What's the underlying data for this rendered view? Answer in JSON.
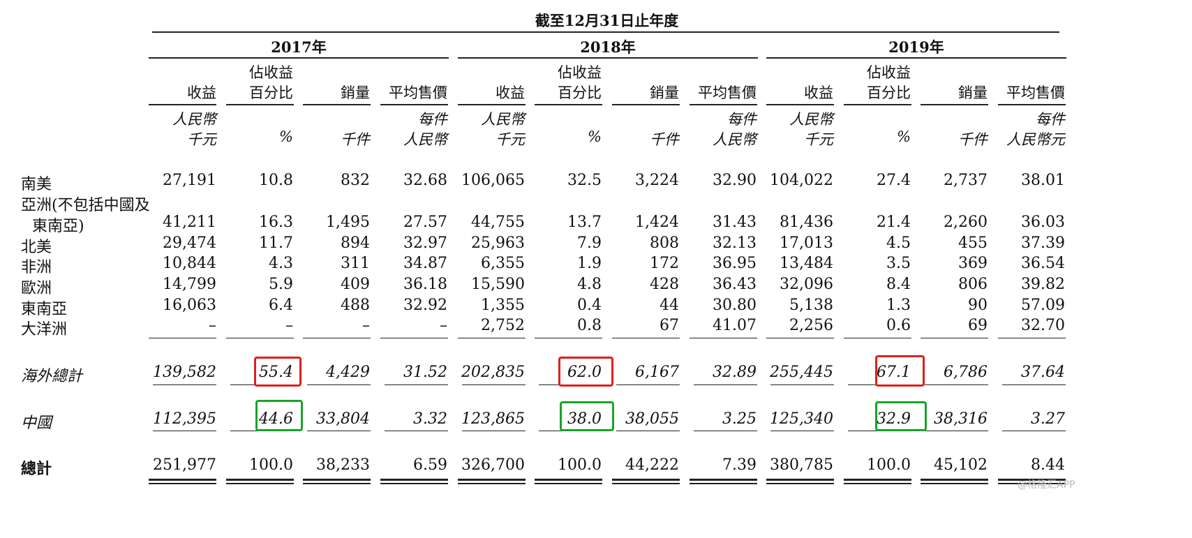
{
  "header": {
    "period": "截至12月31日止年度",
    "years": [
      "2017年",
      "2018年",
      "2019年"
    ],
    "col_revenue": "收益",
    "col_pct_line1": "佔收益",
    "col_pct_line2": "百分比",
    "col_volume": "銷量",
    "col_asp": "平均售價",
    "unit_rev_1": "人民幣",
    "unit_rev_2": "千元",
    "unit_pct": "%",
    "unit_vol": "千件",
    "unit_asp_1": "每件",
    "unit_asp_2": "人民幣",
    "unit_asp_2_last": "人民幣元"
  },
  "rows": [
    {
      "label": "南美",
      "values": [
        "27,191",
        "10.8",
        "832",
        "32.68",
        "106,065",
        "32.5",
        "3,224",
        "32.90",
        "104,022",
        "27.4",
        "2,737",
        "38.01"
      ]
    },
    {
      "label": "亞洲(不包括中國及",
      "label2": "東南亞)",
      "values": [
        "41,211",
        "16.3",
        "1,495",
        "27.57",
        "44,755",
        "13.7",
        "1,424",
        "31.43",
        "81,436",
        "21.4",
        "2,260",
        "36.03"
      ]
    },
    {
      "label": "北美",
      "values": [
        "29,474",
        "11.7",
        "894",
        "32.97",
        "25,963",
        "7.9",
        "808",
        "32.13",
        "17,013",
        "4.5",
        "455",
        "37.39"
      ]
    },
    {
      "label": "非洲",
      "values": [
        "10,844",
        "4.3",
        "311",
        "34.87",
        "6,355",
        "1.9",
        "172",
        "36.95",
        "13,484",
        "3.5",
        "369",
        "36.54"
      ]
    },
    {
      "label": "歐洲",
      "values": [
        "14,799",
        "5.9",
        "409",
        "36.18",
        "15,590",
        "4.8",
        "428",
        "36.43",
        "32,096",
        "8.4",
        "806",
        "39.82"
      ]
    },
    {
      "label": "東南亞",
      "values": [
        "16,063",
        "6.4",
        "488",
        "32.92",
        "1,355",
        "0.4",
        "44",
        "30.80",
        "5,138",
        "1.3",
        "90",
        "57.09"
      ]
    },
    {
      "label": "大洋洲",
      "values": [
        "–",
        "–",
        "–",
        "–",
        "2,752",
        "0.8",
        "67",
        "41.07",
        "2,256",
        "0.6",
        "69",
        "32.70"
      ]
    }
  ],
  "overseas": {
    "label": "海外總計",
    "values": [
      "139,582",
      "55.4",
      "4,429",
      "31.52",
      "202,835",
      "62.0",
      "6,167",
      "32.89",
      "255,445",
      "67.1",
      "6,786",
      "37.64"
    ]
  },
  "china": {
    "label": "中國",
    "values": [
      "112,395",
      "44.6",
      "33,804",
      "3.32",
      "123,865",
      "38.0",
      "38,055",
      "3.25",
      "125,340",
      "32.9",
      "38,316",
      "3.27"
    ]
  },
  "total": {
    "label": "總計",
    "values": [
      "251,977",
      "100.0",
      "38,233",
      "6.59",
      "326,700",
      "100.0",
      "44,222",
      "7.39",
      "380,785",
      "100.0",
      "45,102",
      "8.44"
    ]
  },
  "watermark": "@格隆汇APP",
  "colors": {
    "highlight_red": "#e0201a",
    "highlight_green": "#18a32a"
  }
}
